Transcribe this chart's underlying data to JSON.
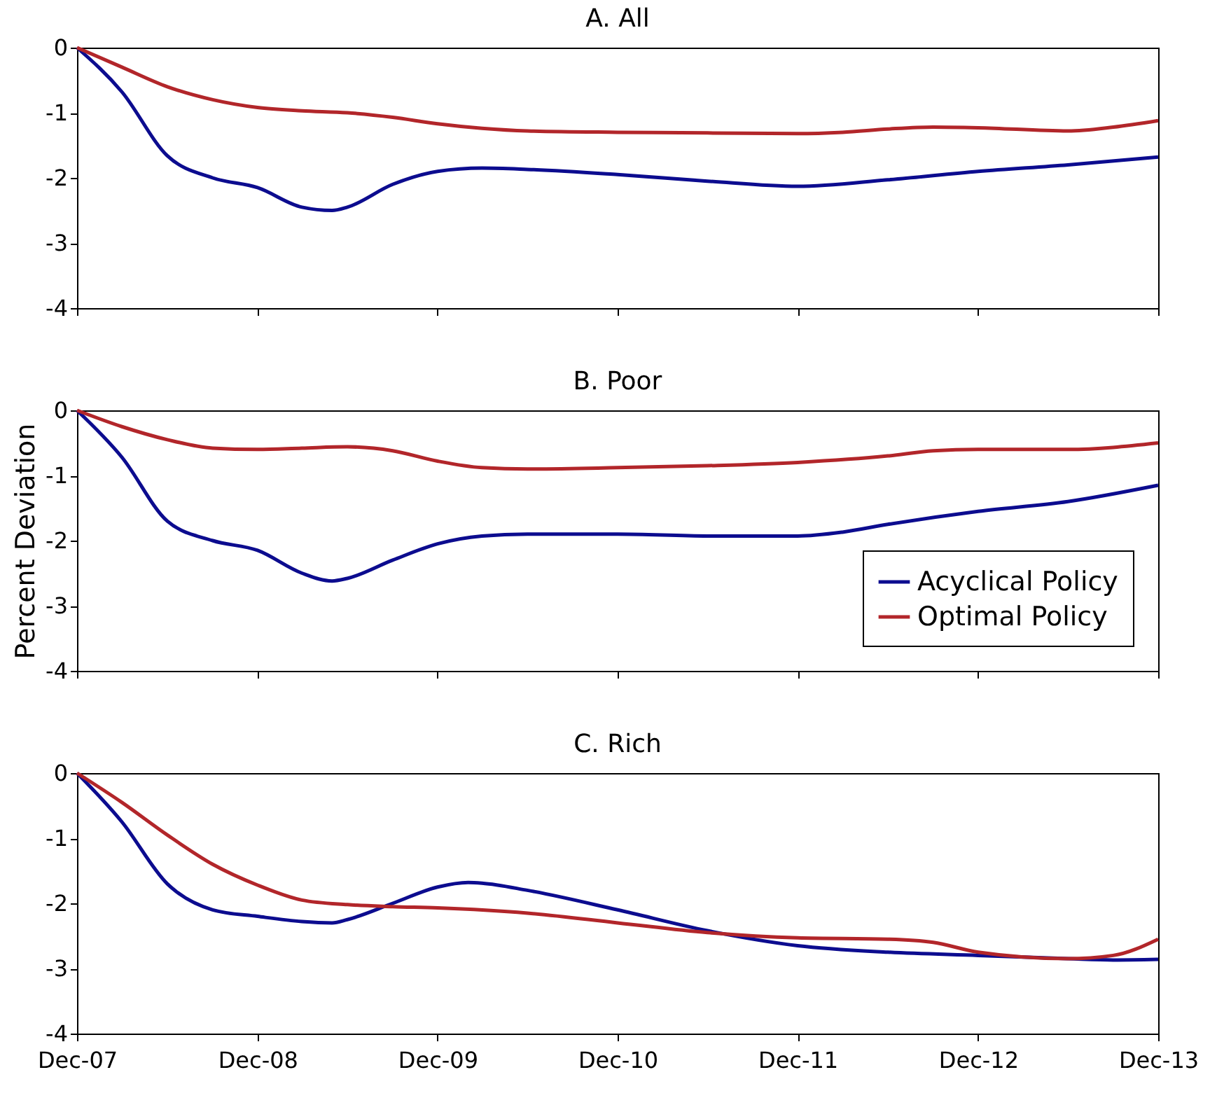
{
  "chart_data": [
    {
      "type": "line",
      "title": "A. All",
      "xlim": [
        "2007-12",
        "2013-12"
      ],
      "xticks": [
        {
          "value": "2007-12",
          "label": null
        },
        {
          "value": "2008-12",
          "label": null
        },
        {
          "value": "2009-12",
          "label": null
        },
        {
          "value": "2010-12",
          "label": null
        },
        {
          "value": "2011-12",
          "label": null
        },
        {
          "value": "2012-12",
          "label": null
        },
        {
          "value": "2013-12",
          "label": null
        }
      ],
      "ylim": [
        -4,
        0
      ],
      "yticks": [
        -4,
        -3,
        -2,
        -1,
        0
      ],
      "tick_labels": "y",
      "grid": false,
      "legend": false,
      "marker": "none",
      "line_style": "solid",
      "series": [
        {
          "color": "#0c0c8f",
          "x": [
            "2007-12",
            "2008-03",
            "2008-06",
            "2008-09",
            "2008-12",
            "2009-03",
            "2009-05",
            "2009-06",
            "2009-09",
            "2009-12",
            "2010-03",
            "2010-06",
            "2010-12",
            "2011-06",
            "2011-12",
            "2012-06",
            "2012-12",
            "2013-06",
            "2013-12"
          ],
          "values": [
            0,
            -0.68,
            -1.66,
            -2.0,
            -2.15,
            -2.45,
            -2.5,
            -2.45,
            -2.1,
            -1.9,
            -1.85,
            -1.87,
            -1.95,
            -2.05,
            -2.13,
            -2.03,
            -1.9,
            -1.8,
            -1.68
          ]
        },
        {
          "color": "#b2262a",
          "x": [
            "2007-12",
            "2008-03",
            "2008-06",
            "2008-09",
            "2008-12",
            "2009-03",
            "2009-06",
            "2009-09",
            "2009-12",
            "2010-03",
            "2010-06",
            "2010-12",
            "2011-06",
            "2011-12",
            "2012-03",
            "2012-06",
            "2012-09",
            "2012-12",
            "2013-06",
            "2013-09",
            "2013-12"
          ],
          "values": [
            0,
            -0.3,
            -0.6,
            -0.8,
            -0.92,
            -0.97,
            -1.0,
            -1.07,
            -1.17,
            -1.24,
            -1.28,
            -1.3,
            -1.31,
            -1.32,
            -1.3,
            -1.25,
            -1.22,
            -1.23,
            -1.28,
            -1.22,
            -1.12
          ]
        }
      ]
    },
    {
      "type": "line",
      "title": "B. Poor",
      "ylabel": "Percent Deviation",
      "xlim": [
        "2007-12",
        "2013-12"
      ],
      "xticks": [
        {
          "value": "2007-12",
          "label": null
        },
        {
          "value": "2008-12",
          "label": null
        },
        {
          "value": "2009-12",
          "label": null
        },
        {
          "value": "2010-12",
          "label": null
        },
        {
          "value": "2011-12",
          "label": null
        },
        {
          "value": "2012-12",
          "label": null
        },
        {
          "value": "2013-12",
          "label": null
        }
      ],
      "ylim": [
        -4,
        0
      ],
      "yticks": [
        -4,
        -3,
        -2,
        -1,
        0
      ],
      "tick_labels": "y",
      "grid": false,
      "legend": "bottom right",
      "marker": "none",
      "line_style": "solid",
      "series": [
        {
          "name": "Acyclical Policy",
          "color": "#0c0c8f",
          "x": [
            "2007-12",
            "2008-03",
            "2008-06",
            "2008-09",
            "2008-12",
            "2009-03",
            "2009-05",
            "2009-06",
            "2009-09",
            "2009-12",
            "2010-03",
            "2010-06",
            "2010-12",
            "2011-06",
            "2011-12",
            "2012-03",
            "2012-06",
            "2012-12",
            "2013-06",
            "2013-12"
          ],
          "values": [
            0,
            -0.72,
            -1.7,
            -2.0,
            -2.15,
            -2.5,
            -2.62,
            -2.58,
            -2.3,
            -2.05,
            -1.93,
            -1.9,
            -1.9,
            -1.93,
            -1.93,
            -1.87,
            -1.75,
            -1.55,
            -1.4,
            -1.15
          ]
        },
        {
          "name": "Optimal Policy",
          "color": "#b2262a",
          "x": [
            "2007-12",
            "2008-03",
            "2008-06",
            "2008-09",
            "2008-12",
            "2009-03",
            "2009-06",
            "2009-09",
            "2009-12",
            "2010-03",
            "2010-06",
            "2010-12",
            "2011-06",
            "2011-12",
            "2012-06",
            "2012-09",
            "2012-12",
            "2013-06",
            "2013-12"
          ],
          "values": [
            0,
            -0.25,
            -0.45,
            -0.58,
            -0.6,
            -0.58,
            -0.56,
            -0.62,
            -0.78,
            -0.88,
            -0.9,
            -0.88,
            -0.85,
            -0.8,
            -0.7,
            -0.62,
            -0.6,
            -0.6,
            -0.5
          ]
        }
      ]
    },
    {
      "type": "line",
      "title": "C. Rich",
      "xlim": [
        "2007-12",
        "2013-12"
      ],
      "xticks": [
        {
          "value": "2007-12",
          "label": "Dec-07"
        },
        {
          "value": "2008-12",
          "label": "Dec-08"
        },
        {
          "value": "2009-12",
          "label": "Dec-09"
        },
        {
          "value": "2010-12",
          "label": "Dec-10"
        },
        {
          "value": "2011-12",
          "label": "Dec-11"
        },
        {
          "value": "2012-12",
          "label": "Dec-12"
        },
        {
          "value": "2013-12",
          "label": "Dec-13"
        }
      ],
      "ylim": [
        -4,
        0
      ],
      "yticks": [
        -4,
        -3,
        -2,
        -1,
        0
      ],
      "grid": false,
      "legend": false,
      "marker": "none",
      "line_style": "solid",
      "series": [
        {
          "color": "#0c0c8f",
          "x": [
            "2007-12",
            "2008-03",
            "2008-06",
            "2008-09",
            "2008-12",
            "2009-03",
            "2009-05",
            "2009-06",
            "2009-09",
            "2009-12",
            "2010-02",
            "2010-03",
            "2010-06",
            "2010-12",
            "2011-06",
            "2011-12",
            "2012-06",
            "2012-12",
            "2013-06",
            "2013-09",
            "2013-12"
          ],
          "values": [
            0,
            -0.75,
            -1.7,
            -2.1,
            -2.2,
            -2.28,
            -2.3,
            -2.25,
            -2.0,
            -1.75,
            -1.68,
            -1.69,
            -1.8,
            -2.1,
            -2.42,
            -2.65,
            -2.75,
            -2.8,
            -2.85,
            -2.87,
            -2.86
          ]
        },
        {
          "color": "#b2262a",
          "x": [
            "2007-12",
            "2008-03",
            "2008-06",
            "2008-09",
            "2008-12",
            "2009-03",
            "2009-06",
            "2009-09",
            "2009-12",
            "2010-06",
            "2010-12",
            "2011-06",
            "2011-12",
            "2012-06",
            "2012-09",
            "2012-12",
            "2013-06",
            "2013-09",
            "2013-12"
          ],
          "values": [
            0,
            -0.45,
            -0.95,
            -1.4,
            -1.72,
            -1.95,
            -2.02,
            -2.05,
            -2.07,
            -2.15,
            -2.3,
            -2.45,
            -2.53,
            -2.55,
            -2.6,
            -2.75,
            -2.85,
            -2.8,
            -2.55
          ]
        }
      ]
    }
  ]
}
